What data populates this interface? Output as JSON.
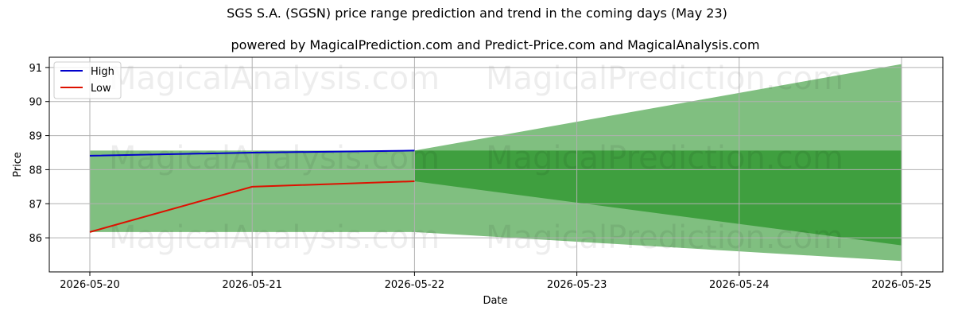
{
  "chart_data": {
    "type": "area",
    "title": "SGS S.A. (SGSN) price range prediction and trend in the coming days (May 23)",
    "subtitle": "powered by MagicalPrediction.com and Predict-Price.com and MagicalAnalysis.com",
    "xlabel": "Date",
    "ylabel": "Price",
    "x": [
      "2026-05-20",
      "2026-05-21",
      "2026-05-22",
      "2026-05-23",
      "2026-05-24",
      "2026-05-25"
    ],
    "ylim": [
      85.0,
      91.3
    ],
    "yticks": [
      86,
      87,
      88,
      89,
      90,
      91
    ],
    "grid": true,
    "legend_position": "top-left",
    "series": [
      {
        "name": "High",
        "color": "#0000cc",
        "x": [
          "2026-05-20",
          "2026-05-21",
          "2026-05-22"
        ],
        "values": [
          88.41,
          88.5,
          88.56
        ]
      },
      {
        "name": "Low",
        "color": "#dd1100",
        "x": [
          "2026-05-20",
          "2026-05-21",
          "2026-05-22"
        ],
        "values": [
          86.17,
          87.5,
          87.66
        ]
      }
    ],
    "bands": [
      {
        "color": "#80bf80",
        "x": [
          "2026-05-20",
          "2026-05-22"
        ],
        "upper": [
          88.56,
          88.56
        ],
        "lower": [
          86.17,
          86.17
        ]
      },
      {
        "color": "#80bf80",
        "x": [
          "2026-05-22",
          "2026-05-25"
        ],
        "upper": [
          88.56,
          91.1
        ],
        "lower": [
          86.17,
          85.32
        ]
      },
      {
        "color": "#3f9f3f",
        "x": [
          "2026-05-22",
          "2026-05-25"
        ],
        "upper": [
          88.56,
          88.56
        ],
        "lower": [
          87.66,
          85.78
        ]
      }
    ],
    "watermarks": [
      "MagicalAnalysis.com",
      "MagicalPrediction.com"
    ]
  }
}
